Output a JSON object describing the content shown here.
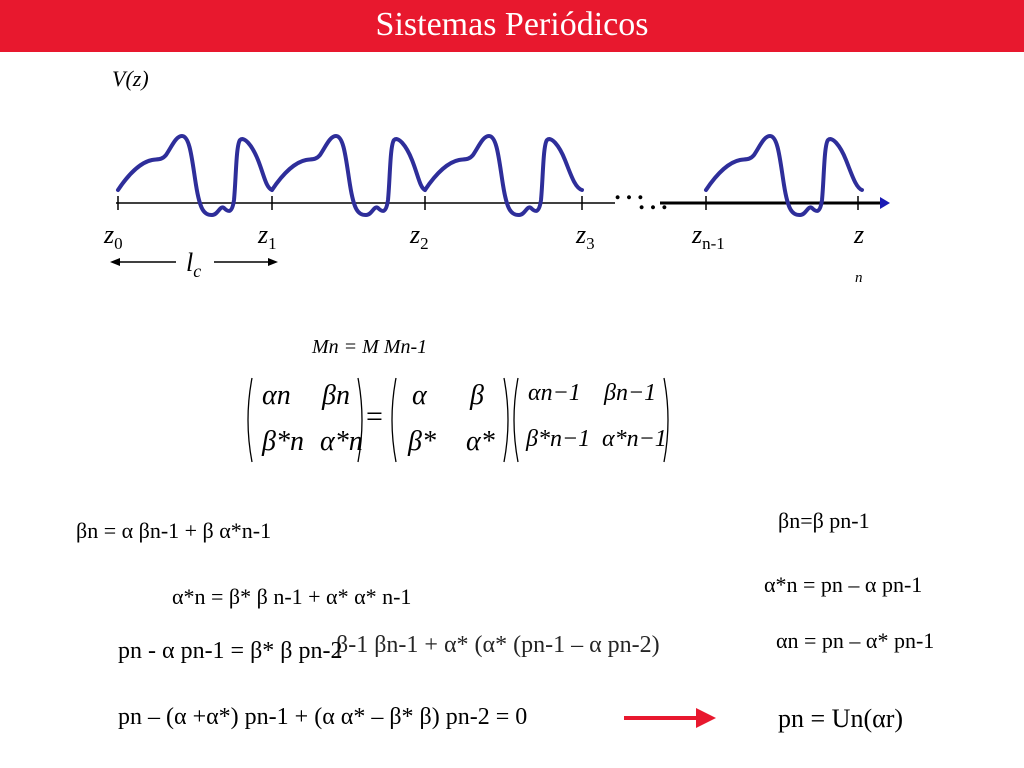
{
  "header": {
    "title": "Sistemas Periódicos",
    "color": "#e8182e"
  },
  "diagram": {
    "y_label": "V(z)",
    "z_labels": [
      {
        "base": "z",
        "sub": "0"
      },
      {
        "base": "z",
        "sub": "1"
      },
      {
        "base": "z",
        "sub": "2"
      },
      {
        "base": "z",
        "sub": "3"
      },
      {
        "base": "z",
        "sub": "n-1"
      },
      {
        "base": "z",
        "sub": "n"
      }
    ],
    "dots": "…",
    "period_label": {
      "base": "l",
      "sub": "c"
    },
    "curve_color": "#2e2e9a"
  },
  "recursion": "Mn = M Mn-1",
  "matrix": {
    "lhs": {
      "a": "αn",
      "b": "βn",
      "c": "β*n",
      "d": "α*n"
    },
    "m": {
      "a": "α",
      "b": "β",
      "c": "β*",
      "d": "α*"
    },
    "rhs": {
      "a": "αn−1",
      "b": "βn−1",
      "c": "β*n−1",
      "d": "α*n−1"
    }
  },
  "equations": {
    "beta_n": "βn = α βn-1 + β α*n-1",
    "alpha_star_n": "α*n = β* β n-1 + α* α* n-1",
    "p_eq": "pn - α pn-1 = β* β pn-2",
    "p_overlap": "β-1 βn-1 + α* (α* (pn-1 – α pn-2)",
    "p_final": "pn – (α +α*) pn-1 + (α α* – β* β) pn-2 = 0",
    "p_final_overlap": "(pn-2 = 0",
    "beta_n_p": "βn=β pn-1",
    "alpha_star_p": "α*n = pn – α pn-1",
    "alpha_n_p": "αn = pn – α* pn-1",
    "result": "pn = Un(αr)"
  },
  "arrow_color": "#e8182e"
}
